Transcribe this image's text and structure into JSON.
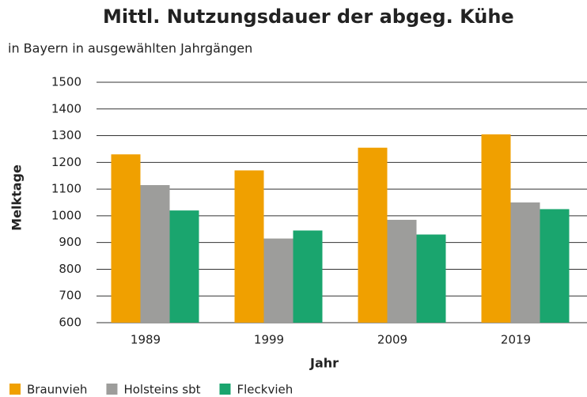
{
  "chart_data": {
    "type": "bar",
    "title": "Mittl. Nutzungsdauer der abgeg. Kühe",
    "subtitle": "in Bayern in ausgewählten Jahrgängen",
    "y_label": "Melktage",
    "x_label": "Jahr",
    "categories": [
      "1989",
      "1999",
      "2009",
      "2019"
    ],
    "series": [
      {
        "name": "Braunvieh",
        "color": "#f0a000",
        "values": [
          1230,
          1170,
          1255,
          1305
        ]
      },
      {
        "name": "Holsteins sbt",
        "color": "#9d9d9b",
        "values": [
          1115,
          915,
          985,
          1050
        ]
      },
      {
        "name": "Fleckvieh",
        "color": "#1aa56e",
        "values": [
          1020,
          945,
          930,
          1025
        ]
      }
    ],
    "ylim": [
      600,
      1500
    ],
    "yticks": [
      600,
      700,
      800,
      900,
      1000,
      1100,
      1200,
      1300,
      1400,
      1500
    ],
    "grid": true
  }
}
